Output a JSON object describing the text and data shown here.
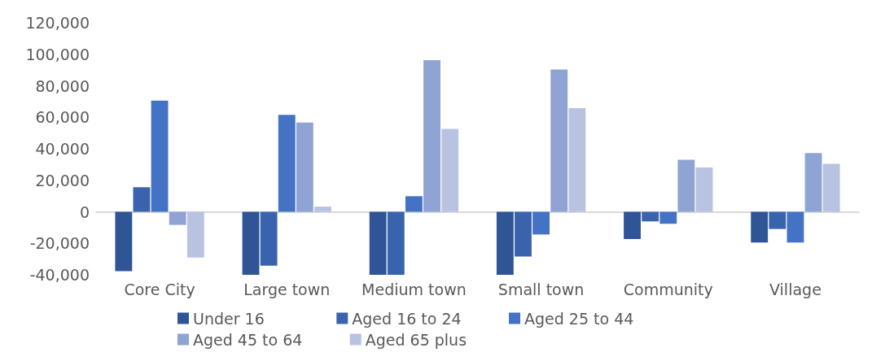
{
  "chart_data": {
    "type": "bar",
    "categories": [
      "Core City",
      "Large town",
      "Medium town",
      "Small town",
      "Community",
      "Village"
    ],
    "series": [
      {
        "name": "Under 16",
        "color": "#2f5597",
        "values": [
          -37700,
          -40000,
          -40000,
          -40000,
          -17300,
          -19500
        ]
      },
      {
        "name": "Aged 16 to 24",
        "color": "#3a63ad",
        "values": [
          15600,
          -34200,
          -40000,
          -28400,
          -6100,
          -10900
        ]
      },
      {
        "name": "Aged 25 to 44",
        "color": "#4472c4",
        "values": [
          70600,
          61600,
          9900,
          -14400,
          -7600,
          -19500
        ]
      },
      {
        "name": "Aged 45 to 64",
        "color": "#8fa3d4",
        "values": [
          -8300,
          56600,
          96300,
          90300,
          33000,
          37300
        ]
      },
      {
        "name": "Aged 65 plus",
        "color": "#b8c3e2",
        "values": [
          -29000,
          3300,
          52700,
          65800,
          28100,
          30500
        ]
      }
    ],
    "ylim": [
      -40000,
      120000
    ],
    "yticks": [
      {
        "value": -40000,
        "label": "-40,000"
      },
      {
        "value": -20000,
        "label": "-20,000"
      },
      0,
      {
        "value": 20000,
        "label": "20,000"
      },
      {
        "value": 40000,
        "label": "40,000"
      },
      {
        "value": 60000,
        "label": "60,000"
      },
      {
        "value": 80000,
        "label": "80,000"
      },
      {
        "value": 100000,
        "label": "100,000"
      },
      {
        "value": 120000,
        "label": "120,000"
      }
    ],
    "legend": "bottom"
  }
}
